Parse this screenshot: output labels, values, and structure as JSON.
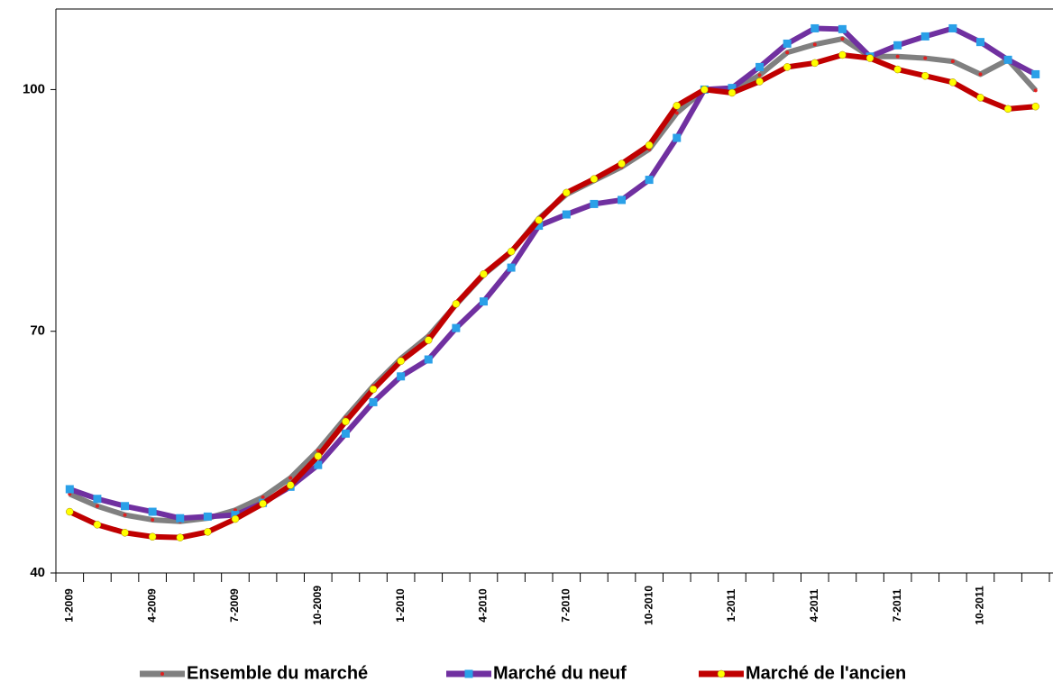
{
  "chart_data": {
    "type": "line",
    "categories": [
      "1-2009",
      null,
      null,
      "4-2009",
      null,
      null,
      "7-2009",
      null,
      null,
      "10-2009",
      null,
      null,
      "1-2010",
      null,
      null,
      "4-2010",
      null,
      null,
      "7-2010",
      null,
      null,
      "10-2010",
      null,
      null,
      "1-2011",
      null,
      null,
      "4-2011",
      null,
      null,
      "7-2011",
      null,
      null,
      "10-2011",
      null,
      null
    ],
    "ylim": [
      40,
      110
    ],
    "yticks": [
      40,
      70,
      100
    ],
    "series": [
      {
        "name": "Ensemble du marché",
        "color": "#808080",
        "marker_color": "#e02020",
        "marker": "dot",
        "values": [
          49.8,
          48.3,
          47.2,
          46.6,
          46.4,
          46.8,
          47.8,
          49.4,
          51.8,
          55.2,
          59.3,
          63.2,
          66.6,
          69.4,
          73.3,
          77.0,
          79.8,
          84.0,
          87.0,
          88.7,
          90.4,
          92.6,
          97.1,
          100,
          99.8,
          101.8,
          104.6,
          105.6,
          106.3,
          104.1,
          104.1,
          103.9,
          103.5,
          101.9,
          103.7,
          99.9
        ]
      },
      {
        "name": "Marché du neuf",
        "color": "#7030a0",
        "marker_color": "#2aa0e8",
        "marker": "square",
        "values": [
          50.4,
          49.2,
          48.3,
          47.6,
          46.8,
          47.0,
          47.2,
          48.7,
          50.7,
          53.4,
          57.3,
          61.2,
          64.4,
          66.5,
          70.4,
          73.7,
          77.9,
          83.1,
          84.5,
          85.8,
          86.3,
          88.8,
          94.0,
          100,
          100.2,
          102.8,
          105.7,
          107.6,
          107.5,
          104.1,
          105.5,
          106.6,
          107.6,
          105.9,
          103.7,
          101.9
        ]
      },
      {
        "name": "Marché de l'ancien",
        "color": "#c00000",
        "marker_color": "#ffff00",
        "marker": "circle",
        "values": [
          47.6,
          46.0,
          45.0,
          44.5,
          44.4,
          45.1,
          46.7,
          48.6,
          50.9,
          54.5,
          58.8,
          62.8,
          66.3,
          68.9,
          73.4,
          77.1,
          79.9,
          83.8,
          87.2,
          88.9,
          90.8,
          93.1,
          98.0,
          100,
          99.6,
          101.0,
          102.8,
          103.3,
          104.3,
          103.9,
          102.5,
          101.7,
          100.9,
          99.0,
          97.6,
          97.9
        ]
      }
    ]
  }
}
